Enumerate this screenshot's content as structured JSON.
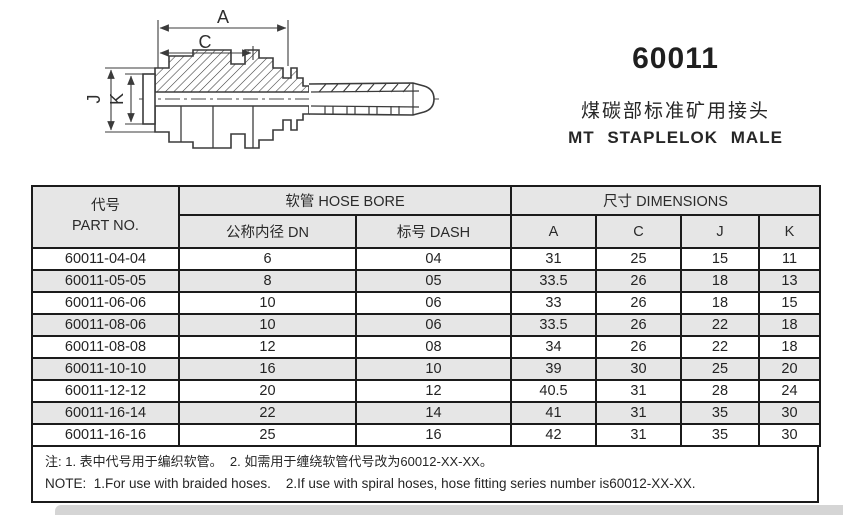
{
  "title": {
    "part_series": "60011",
    "subtitle_cn": "煤碳部标准矿用接头",
    "subtitle_en": "MT STAPLELOK MALE"
  },
  "diagram": {
    "labels": {
      "a": "A",
      "c": "C",
      "j": "J",
      "k": "K"
    }
  },
  "table": {
    "headers": {
      "part_no_cn": "代号",
      "part_no_en": "PART NO.",
      "hose_bore": "软管 HOSE BORE",
      "dimensions": "尺寸 DIMENSIONS",
      "dn": "公称内径 DN",
      "dash": "标号 DASH",
      "a": "A",
      "c": "C",
      "j": "J",
      "k": "K"
    },
    "rows": [
      [
        "60011-04-04",
        "6",
        "04",
        "31",
        "25",
        "15",
        "11"
      ],
      [
        "60011-05-05",
        "8",
        "05",
        "33.5",
        "26",
        "18",
        "13"
      ],
      [
        "60011-06-06",
        "10",
        "06",
        "33",
        "26",
        "18",
        "15"
      ],
      [
        "60011-08-06",
        "10",
        "06",
        "33.5",
        "26",
        "22",
        "18"
      ],
      [
        "60011-08-08",
        "12",
        "08",
        "34",
        "26",
        "22",
        "18"
      ],
      [
        "60011-10-10",
        "16",
        "10",
        "39",
        "30",
        "25",
        "20"
      ],
      [
        "60011-12-12",
        "20",
        "12",
        "40.5",
        "31",
        "28",
        "24"
      ],
      [
        "60011-16-14",
        "22",
        "14",
        "41",
        "31",
        "35",
        "30"
      ],
      [
        "60011-16-16",
        "25",
        "16",
        "42",
        "31",
        "35",
        "30"
      ]
    ]
  },
  "note": {
    "line_cn": "注: 1. 表中代号用于编织软管。  2. 如需用于缠绕软管代号改为60012-XX-XX。",
    "line_en": "NOTE:  1.For use with braided hoses.    2.If use with spiral hoses, hose fitting series number is60012-XX-XX."
  },
  "colors": {
    "header_bg": "#e6e6e6",
    "row_alt_bg": "#e6e6e6",
    "table_border": "#1b1b1b",
    "drawing_line": "#3b3b3b",
    "text": "#222222",
    "bottom_strip": "#d5d5d5"
  }
}
